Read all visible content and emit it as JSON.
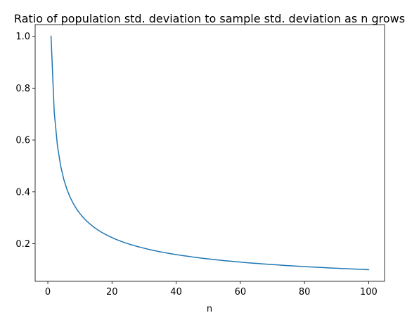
{
  "chart_data": {
    "type": "line",
    "title": "Ratio of population std. deviation to sample std. deviation as n grows",
    "xlabel": "n",
    "ylabel": "",
    "xlim": [
      -3.95,
      104.95
    ],
    "ylim": [
      0.055,
      1.045
    ],
    "x_ticks": [
      0,
      20,
      40,
      60,
      80,
      100
    ],
    "y_ticks": [
      0.2,
      0.4,
      0.6,
      0.8,
      1.0
    ],
    "x_tick_labels": [
      "0",
      "20",
      "40",
      "60",
      "80",
      "100"
    ],
    "y_tick_labels": [
      "0.2",
      "0.4",
      "0.6",
      "0.8",
      "1.0"
    ],
    "grid": false,
    "legend": "none",
    "series": [
      {
        "color": "#1f77b4",
        "x": [
          1,
          2,
          3,
          4,
          5,
          6,
          7,
          8,
          9,
          10,
          11,
          12,
          13,
          14,
          15,
          16,
          17,
          18,
          19,
          20,
          21,
          22,
          23,
          24,
          25,
          26,
          27,
          28,
          29,
          30,
          31,
          32,
          33,
          34,
          35,
          36,
          37,
          38,
          39,
          40,
          41,
          42,
          43,
          44,
          45,
          46,
          47,
          48,
          49,
          50,
          51,
          52,
          53,
          54,
          55,
          56,
          57,
          58,
          59,
          60,
          61,
          62,
          63,
          64,
          65,
          66,
          67,
          68,
          69,
          70,
          71,
          72,
          73,
          74,
          75,
          76,
          77,
          78,
          79,
          80,
          81,
          82,
          83,
          84,
          85,
          86,
          87,
          88,
          89,
          90,
          91,
          92,
          93,
          94,
          95,
          96,
          97,
          98,
          99,
          100
        ],
        "values": [
          1.0,
          0.7071,
          0.5774,
          0.5,
          0.4472,
          0.4082,
          0.378,
          0.3536,
          0.3333,
          0.3162,
          0.3015,
          0.2887,
          0.2774,
          0.2673,
          0.2582,
          0.25,
          0.2425,
          0.2357,
          0.2294,
          0.2236,
          0.2182,
          0.2132,
          0.2085,
          0.2041,
          0.2,
          0.1961,
          0.1925,
          0.189,
          0.1857,
          0.1826,
          0.1796,
          0.1768,
          0.1741,
          0.1715,
          0.169,
          0.1667,
          0.1644,
          0.1622,
          0.1601,
          0.1581,
          0.1562,
          0.1543,
          0.1525,
          0.1508,
          0.1491,
          0.1474,
          0.1459,
          0.1443,
          0.1429,
          0.1414,
          0.14,
          0.1387,
          0.1374,
          0.1361,
          0.1348,
          0.1336,
          0.1325,
          0.1313,
          0.1302,
          0.1291,
          0.128,
          0.127,
          0.126,
          0.125,
          0.124,
          0.1231,
          0.1222,
          0.1213,
          0.1204,
          0.1195,
          0.1187,
          0.1179,
          0.117,
          0.1162,
          0.1155,
          0.1147,
          0.114,
          0.1132,
          0.1125,
          0.1118,
          0.1111,
          0.1104,
          0.1098,
          0.1091,
          0.1085,
          0.1078,
          0.1072,
          0.1066,
          0.106,
          0.1054,
          0.1048,
          0.1043,
          0.1037,
          0.1031,
          0.1026,
          0.1021,
          0.1015,
          0.101,
          0.1005,
          0.1
        ]
      }
    ]
  }
}
